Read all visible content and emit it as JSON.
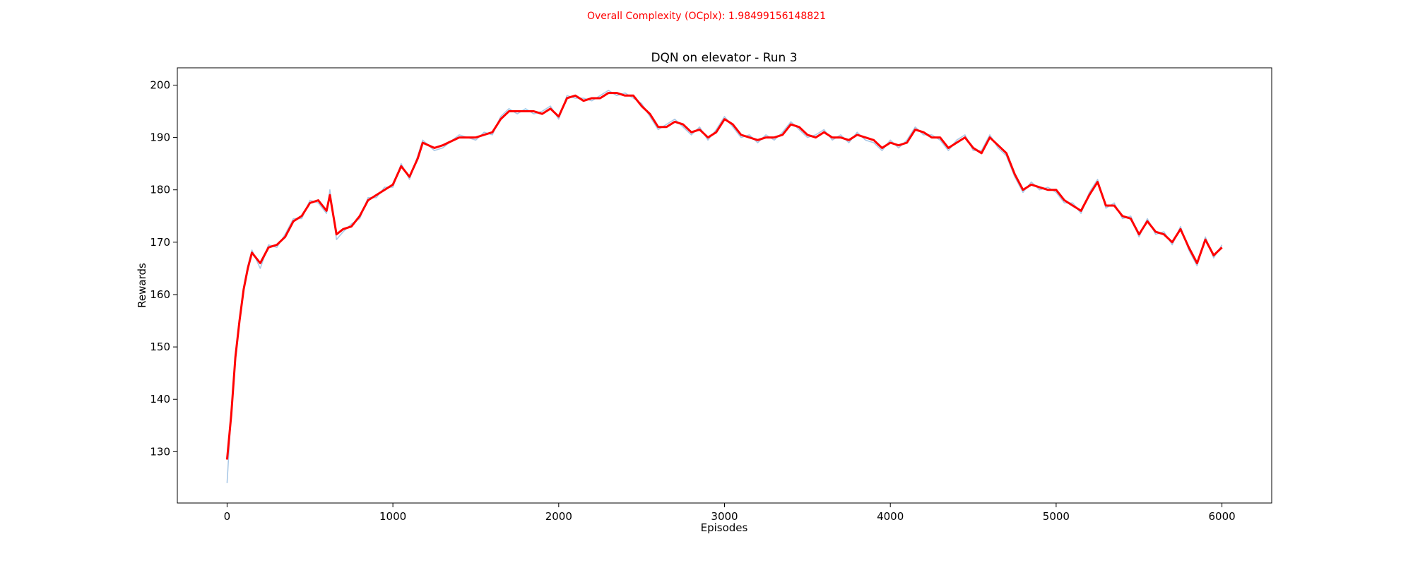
{
  "chart_data": {
    "type": "line",
    "suptitle": "Overall Complexity (OCplx): 1.98499156148821",
    "suptitle_color": "#ff0000",
    "title": "DQN on elevator - Run 3",
    "xlabel": "Episodes",
    "ylabel": "Rewards",
    "xlim": [
      -300,
      6300
    ],
    "ylim": [
      120.2,
      203.3
    ],
    "xticks": [
      0,
      1000,
      2000,
      3000,
      4000,
      5000,
      6000
    ],
    "yticks": [
      130,
      140,
      150,
      160,
      170,
      180,
      190,
      200
    ],
    "x": [
      0,
      25,
      50,
      75,
      100,
      125,
      150,
      200,
      250,
      300,
      350,
      400,
      450,
      500,
      550,
      600,
      620,
      660,
      700,
      750,
      800,
      850,
      900,
      950,
      1000,
      1050,
      1100,
      1150,
      1180,
      1250,
      1300,
      1400,
      1500,
      1550,
      1600,
      1650,
      1700,
      1750,
      1800,
      1850,
      1900,
      1950,
      2000,
      2050,
      2100,
      2150,
      2200,
      2250,
      2300,
      2350,
      2400,
      2450,
      2500,
      2550,
      2600,
      2650,
      2700,
      2750,
      2800,
      2850,
      2900,
      2950,
      3000,
      3050,
      3100,
      3150,
      3200,
      3250,
      3300,
      3350,
      3400,
      3450,
      3500,
      3550,
      3600,
      3650,
      3700,
      3750,
      3800,
      3850,
      3900,
      3950,
      4000,
      4050,
      4100,
      4150,
      4200,
      4250,
      4300,
      4350,
      4400,
      4450,
      4500,
      4550,
      4600,
      4650,
      4700,
      4750,
      4800,
      4850,
      4900,
      4950,
      5000,
      5050,
      5100,
      5150,
      5200,
      5250,
      5300,
      5350,
      5400,
      5450,
      5500,
      5550,
      5600,
      5650,
      5700,
      5750,
      5800,
      5850,
      5900,
      5950,
      6000
    ],
    "series": [
      {
        "color": "#a9c8e6",
        "values": [
          124,
          137.5,
          148.5,
          155.5,
          161.5,
          165.5,
          168.5,
          165,
          169.5,
          169,
          171.5,
          174.5,
          174.5,
          178,
          177.5,
          175.5,
          180,
          170.5,
          172,
          173.5,
          174.5,
          178.5,
          178.5,
          180.5,
          180.5,
          185,
          182,
          186.5,
          189.5,
          187.5,
          188,
          190.5,
          189.5,
          191,
          190.5,
          194,
          195.5,
          194.5,
          195.5,
          194.5,
          195,
          196,
          193.5,
          198,
          197.5,
          197.5,
          197,
          198,
          199,
          198,
          198.5,
          197.5,
          196.5,
          194,
          191.5,
          192.5,
          193.5,
          192,
          190.5,
          192,
          189.5,
          191.5,
          194,
          192,
          190,
          190.5,
          189,
          190.5,
          189.5,
          191,
          193,
          191.5,
          190,
          190.5,
          191.5,
          189.5,
          190.5,
          189,
          191,
          189.5,
          189,
          187.5,
          189.5,
          188,
          189.5,
          192,
          190.5,
          190.5,
          189.5,
          187.5,
          189.5,
          190.5,
          187.5,
          187.5,
          190.5,
          188,
          186.5,
          182.5,
          179.5,
          181.5,
          180,
          180.5,
          179.5,
          177.5,
          177.5,
          175.5,
          179.5,
          182,
          176.5,
          177.5,
          174.5,
          175,
          171,
          174.5,
          171.5,
          172,
          169.5,
          173,
          168.5,
          165.5,
          171,
          167,
          169.5
        ]
      },
      {
        "color": "#ff0000",
        "values": [
          128.5,
          137,
          148,
          155,
          161,
          165,
          168,
          166,
          169,
          169.5,
          171,
          174,
          175,
          177.5,
          178,
          176,
          179,
          171.5,
          172.5,
          173,
          175,
          178,
          179,
          180,
          181,
          184.5,
          182.5,
          186,
          189,
          188,
          188.5,
          190,
          190,
          190.5,
          191,
          193.5,
          195,
          195,
          195,
          195,
          194.5,
          195.5,
          194,
          197.5,
          198,
          197,
          197.5,
          197.5,
          198.5,
          198.5,
          198,
          198,
          196,
          194.5,
          192,
          192,
          193,
          192.5,
          191,
          191.5,
          190,
          191,
          193.5,
          192.5,
          190.5,
          190,
          189.5,
          190,
          190,
          190.5,
          192.5,
          192,
          190.5,
          190,
          191,
          190,
          190,
          189.5,
          190.5,
          190,
          189.5,
          188,
          189,
          188.5,
          189,
          191.5,
          191,
          190,
          190,
          188,
          189,
          190,
          188,
          187,
          190,
          188.5,
          187,
          183,
          180,
          181,
          180.5,
          180,
          180,
          178,
          177,
          176,
          179,
          181.5,
          177,
          177,
          175,
          174.5,
          171.5,
          174,
          172,
          171.5,
          170,
          172.5,
          169,
          166,
          170.5,
          167.5,
          169
        ]
      }
    ]
  }
}
